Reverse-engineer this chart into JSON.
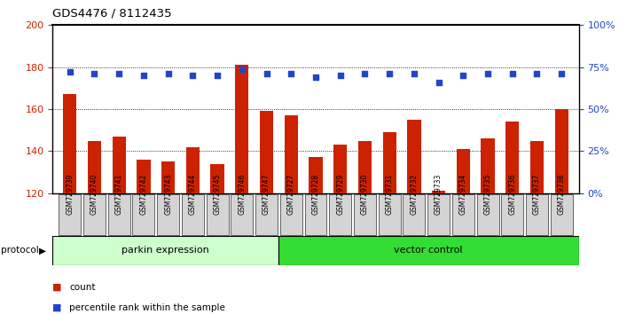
{
  "title": "GDS4476 / 8112435",
  "samples": [
    "GSM729739",
    "GSM729740",
    "GSM729741",
    "GSM729742",
    "GSM729743",
    "GSM729744",
    "GSM729745",
    "GSM729746",
    "GSM729747",
    "GSM729727",
    "GSM729728",
    "GSM729729",
    "GSM729730",
    "GSM729731",
    "GSM729732",
    "GSM729733",
    "GSM729734",
    "GSM729735",
    "GSM729736",
    "GSM729737",
    "GSM729738"
  ],
  "count_values": [
    167,
    145,
    147,
    136,
    135,
    142,
    134,
    181,
    159,
    157,
    137,
    143,
    145,
    149,
    155,
    121,
    141,
    146,
    154,
    145,
    160
  ],
  "percentile_ranks": [
    72,
    71,
    71,
    70,
    71,
    70,
    70,
    74,
    71,
    71,
    69,
    70,
    71,
    71,
    71,
    66,
    70,
    71,
    71,
    71,
    71
  ],
  "group1_label": "parkin expression",
  "group2_label": "vector control",
  "group1_count": 9,
  "group2_count": 12,
  "ylim_left": [
    120,
    200
  ],
  "ylim_right": [
    0,
    100
  ],
  "yticks_left": [
    120,
    140,
    160,
    180,
    200
  ],
  "yticks_right": [
    0,
    25,
    50,
    75,
    100
  ],
  "bar_color": "#cc2200",
  "dot_color": "#2244cc",
  "group1_facecolor": "#ccffcc",
  "group2_facecolor": "#33dd33",
  "sample_box_color": "#d4d4d4",
  "plot_bg": "#ffffff",
  "legend_count_label": "count",
  "legend_pct_label": "percentile rank within the sample"
}
